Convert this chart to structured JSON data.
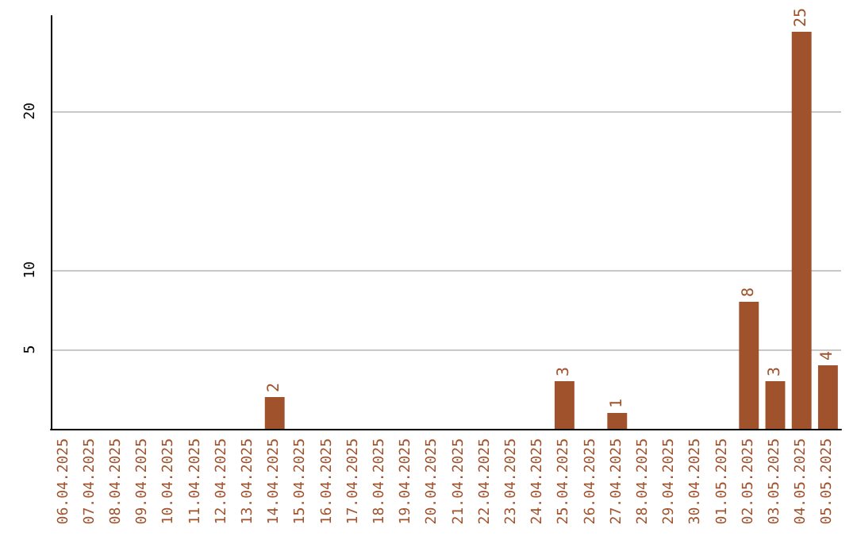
{
  "chart_data": {
    "type": "bar",
    "categories": [
      "06.04.2025",
      "07.04.2025",
      "08.04.2025",
      "09.04.2025",
      "10.04.2025",
      "11.04.2025",
      "12.04.2025",
      "13.04.2025",
      "14.04.2025",
      "15.04.2025",
      "16.04.2025",
      "17.04.2025",
      "18.04.2025",
      "19.04.2025",
      "20.04.2025",
      "21.04.2025",
      "22.04.2025",
      "23.04.2025",
      "24.04.2025",
      "25.04.2025",
      "26.04.2025",
      "27.04.2025",
      "28.04.2025",
      "29.04.2025",
      "30.04.2025",
      "01.05.2025",
      "02.05.2025",
      "03.05.2025",
      "04.05.2025",
      "05.05.2025"
    ],
    "values": [
      null,
      null,
      null,
      null,
      null,
      null,
      null,
      null,
      2,
      null,
      null,
      null,
      null,
      null,
      null,
      null,
      null,
      null,
      null,
      3,
      null,
      1,
      null,
      null,
      null,
      null,
      8,
      3,
      25,
      4
    ],
    "color": "#a0522d",
    "ylim": [
      0,
      26
    ],
    "yticks": [
      {
        "value": 0,
        "label": null
      },
      5,
      10,
      20
    ],
    "grid": "y",
    "data_labels": true
  }
}
